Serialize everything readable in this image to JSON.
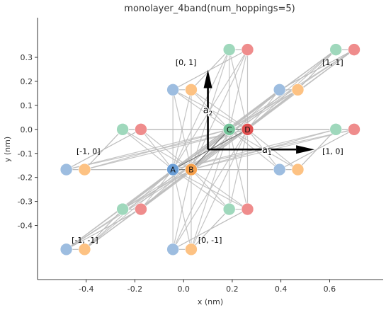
{
  "chart_data": {
    "type": "scatter",
    "title": "monolayer_4band(num_hoppings=5)",
    "xlabel": "x (nm)",
    "ylabel": "y (nm)",
    "xlim": [
      -0.6,
      0.82
    ],
    "ylim": [
      -0.625,
      0.465
    ],
    "xticks": [
      -0.4,
      -0.2,
      0.0,
      0.2,
      0.4,
      0.6
    ],
    "xtick_labels": [
      "-0.4",
      "-0.2",
      "0.0",
      "0.2",
      "0.4",
      "0.6"
    ],
    "yticks": [
      0.3,
      0.2,
      0.1,
      0.0,
      -0.1,
      -0.2,
      -0.3,
      -0.4
    ],
    "ytick_labels": [
      "0.3",
      "0.2",
      "0.1",
      "0.0",
      "-0.1",
      "-0.2",
      "-0.3",
      "-0.4"
    ],
    "grid": false,
    "colors": {
      "A": "#9dbde0",
      "B": "#fdc283",
      "C": "#9fd8bc",
      "D": "#ef8c8c",
      "A_center": "#6a9ed6",
      "B_center": "#f6a04b",
      "C_center": "#74c49a",
      "D_center": "#e04f4f",
      "hopping": "#bbbbbb",
      "vector": "#000000"
    },
    "sublattices": [
      {
        "name": "A",
        "offset": [
          -0.0438,
          -0.1671
        ]
      },
      {
        "name": "B",
        "offset": [
          0.0313,
          -0.1671
        ]
      },
      {
        "name": "C",
        "offset": [
          0.1876,
          0.0
        ]
      },
      {
        "name": "D",
        "offset": [
          0.2627,
          0.0
        ]
      }
    ],
    "cells": [
      {
        "label": "[0, 0]",
        "offset": [
          0.0,
          0.0
        ],
        "labelled": false
      },
      {
        "label": "[1, 0]",
        "offset": [
          0.438,
          0.0
        ],
        "labelled": true
      },
      {
        "label": "[-1, 0]",
        "offset": [
          -0.438,
          0.0
        ],
        "labelled": true
      },
      {
        "label": "[0, 1]",
        "offset": [
          0.0,
          0.3321
        ],
        "labelled": true
      },
      {
        "label": "[1, 1]",
        "offset": [
          0.438,
          0.3321
        ],
        "labelled": true
      },
      {
        "label": "[0, -1]",
        "offset": [
          0.0,
          -0.3321
        ],
        "labelled": true
      },
      {
        "label": "[-1, -1]",
        "offset": [
          -0.438,
          -0.3321
        ],
        "labelled": true
      }
    ],
    "hopping_cells": [
      [
        [
          -1,
          0
        ],
        [
          0,
          0
        ]
      ],
      [
        [
          0,
          0
        ],
        [
          1,
          0
        ]
      ],
      [
        [
          0,
          -1
        ],
        [
          0,
          0
        ]
      ],
      [
        [
          0,
          0
        ],
        [
          0,
          1
        ]
      ],
      [
        [
          -1,
          -1
        ],
        [
          0,
          0
        ]
      ],
      [
        [
          0,
          0
        ],
        [
          1,
          1
        ]
      ]
    ],
    "vectors": [
      {
        "name": "a1",
        "label_main": "a",
        "label_sub": "1",
        "origin": [
          0.1,
          -0.0836
        ],
        "vector": [
          0.438,
          0.0
        ]
      },
      {
        "name": "a2",
        "label_main": "a",
        "label_sub": "2",
        "origin": [
          0.1,
          -0.0836
        ],
        "vector": [
          0.0,
          0.3321
        ]
      }
    ]
  }
}
